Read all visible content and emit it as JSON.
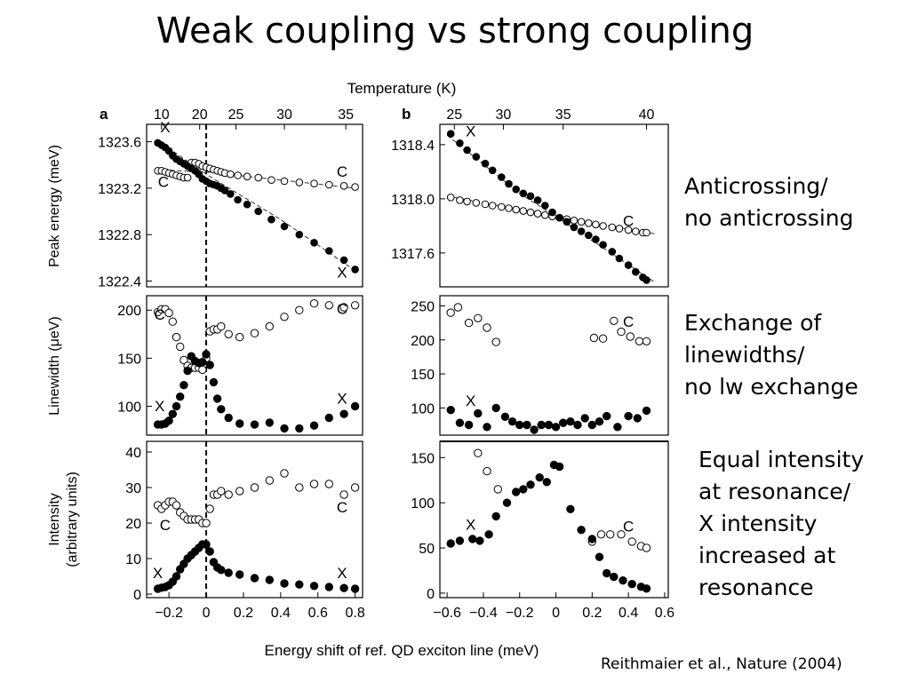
{
  "slide": {
    "title": "Weak coupling vs strong coupling",
    "notes": [
      {
        "lines": [
          "Anticrossing/",
          "no anticrossing"
        ]
      },
      {
        "lines": [
          "Exchange of",
          "linewidths/",
          "no lw exchange"
        ]
      },
      {
        "lines": [
          "Equal intensity",
          "at resonance/",
          "X intensity",
          "increased at",
          "resonance"
        ]
      }
    ],
    "citation": "Reithmaier et al.,  Nature (2004)"
  },
  "figure": {
    "top_axis_label": "Temperature (K)",
    "bottom_axis_label": "Energy shift of ref. QD exciton line (meV)",
    "panel_letters": [
      "a",
      "b"
    ],
    "row_ylabels": [
      "Peak energy (meV)",
      "Linewidth (μeV)",
      "Intensity (arbitrary units)"
    ],
    "intensity_ylabel_lines": [
      "Intensity",
      "(arbitrary units)"
    ],
    "series_labels": {
      "exciton": "X",
      "cavity": "C"
    },
    "temperature_ticks_a": [
      {
        "label": "10",
        "x": -0.24
      },
      {
        "label": "20",
        "x": -0.035
      },
      {
        "label": "25",
        "x": 0.16
      },
      {
        "label": "30",
        "x": 0.42
      },
      {
        "label": "35",
        "x": 0.75
      }
    ],
    "temperature_ticks_b": [
      {
        "label": "25",
        "x": -0.56
      },
      {
        "label": "30",
        "x": -0.29
      },
      {
        "label": "35",
        "x": 0.04
      },
      {
        "label": "40",
        "x": 0.5
      }
    ],
    "xticks_a": {
      "values": [
        -0.2,
        0,
        0.2,
        0.4,
        0.6,
        0.8
      ],
      "labels": [
        "−0.2",
        "0",
        "0.2",
        "0.4",
        "0.6",
        "0.8"
      ]
    },
    "xticks_b": {
      "values": [
        -0.6,
        -0.4,
        -0.2,
        0,
        0.2,
        0.4,
        0.6
      ],
      "labels": [
        "−0.6",
        "−0.4",
        "−0.2",
        "0",
        "0.2",
        "0.4",
        "0.6"
      ]
    }
  },
  "chart_data": [
    {
      "id": "a-energy",
      "type": "scatter",
      "xlim": [
        -0.32,
        0.84
      ],
      "ylim": [
        1322.35,
        1323.75
      ],
      "yticks": [
        1322.4,
        1322.8,
        1323.2,
        1323.6
      ],
      "yticklabels": [
        "1322.4",
        "1322.8",
        "1323.2",
        "1323.6"
      ],
      "resonance_line_x": 0,
      "fits": [
        {
          "name": "X",
          "x": [
            -0.27,
            0.0,
            0.4,
            0.8
          ],
          "y": [
            1323.62,
            1323.32,
            1322.93,
            1322.49
          ]
        },
        {
          "name": "C",
          "x": [
            -0.27,
            0.0,
            0.4,
            0.8
          ],
          "y": [
            1323.36,
            1323.34,
            1323.27,
            1323.2
          ]
        }
      ],
      "series": [
        {
          "name": "X",
          "marker": "filled",
          "x": [
            -0.26,
            -0.24,
            -0.22,
            -0.2,
            -0.18,
            -0.16,
            -0.14,
            -0.12,
            -0.1,
            -0.08,
            -0.06,
            -0.04,
            -0.02,
            0.0,
            0.02,
            0.04,
            0.06,
            0.08,
            0.1,
            0.13,
            0.17,
            0.22,
            0.28,
            0.35,
            0.42,
            0.5,
            0.58,
            0.66,
            0.74,
            0.8
          ],
          "y": [
            1323.59,
            1323.57,
            1323.55,
            1323.52,
            1323.48,
            1323.45,
            1323.43,
            1323.41,
            1323.39,
            1323.37,
            1323.35,
            1323.32,
            1323.28,
            1323.26,
            1323.24,
            1323.23,
            1323.22,
            1323.2,
            1323.18,
            1323.15,
            1323.1,
            1323.06,
            1323.0,
            1322.93,
            1322.87,
            1322.8,
            1322.73,
            1322.66,
            1322.58,
            1322.5
          ]
        },
        {
          "name": "C",
          "marker": "open",
          "x": [
            -0.26,
            -0.24,
            -0.22,
            -0.2,
            -0.18,
            -0.16,
            -0.14,
            -0.12,
            -0.1,
            -0.08,
            -0.06,
            -0.04,
            -0.02,
            0.0,
            0.02,
            0.04,
            0.06,
            0.08,
            0.1,
            0.13,
            0.17,
            0.22,
            0.28,
            0.35,
            0.42,
            0.5,
            0.58,
            0.66,
            0.74,
            0.8
          ],
          "y": [
            1323.35,
            1323.35,
            1323.34,
            1323.33,
            1323.32,
            1323.31,
            1323.3,
            1323.29,
            1323.29,
            1323.42,
            1323.42,
            1323.41,
            1323.39,
            1323.38,
            1323.37,
            1323.36,
            1323.35,
            1323.34,
            1323.33,
            1323.32,
            1323.31,
            1323.3,
            1323.29,
            1323.27,
            1323.26,
            1323.25,
            1323.24,
            1323.23,
            1323.22,
            1323.21
          ]
        }
      ],
      "labels": [
        {
          "text": "X",
          "x": -0.22,
          "y": 1323.68
        },
        {
          "text": "C",
          "x": -0.23,
          "y": 1323.21
        },
        {
          "text": "C",
          "x": 0.73,
          "y": 1323.3
        },
        {
          "text": "X",
          "x": 0.73,
          "y": 1322.43
        }
      ]
    },
    {
      "id": "a-linewidth",
      "type": "scatter",
      "xlim": [
        -0.32,
        0.84
      ],
      "ylim": [
        70,
        215
      ],
      "yticks": [
        100,
        150,
        200
      ],
      "yticklabels": [
        "100",
        "150",
        "200"
      ],
      "resonance_line_x": 0,
      "series": [
        {
          "name": "X",
          "marker": "filled",
          "x": [
            -0.26,
            -0.24,
            -0.22,
            -0.2,
            -0.18,
            -0.16,
            -0.14,
            -0.12,
            -0.1,
            -0.08,
            -0.06,
            -0.04,
            -0.02,
            0.0,
            0.02,
            0.04,
            0.06,
            0.08,
            0.12,
            0.18,
            0.26,
            0.34,
            0.42,
            0.5,
            0.58,
            0.66,
            0.74,
            0.8
          ],
          "y": [
            81,
            81,
            82,
            85,
            92,
            100,
            110,
            122,
            137,
            152,
            147,
            145,
            146,
            154,
            143,
            125,
            108,
            97,
            88,
            82,
            81,
            83,
            77,
            77,
            80,
            88,
            92,
            100
          ]
        },
        {
          "name": "C",
          "marker": "open",
          "x": [
            -0.26,
            -0.24,
            -0.22,
            -0.2,
            -0.18,
            -0.16,
            -0.14,
            -0.12,
            -0.1,
            -0.08,
            -0.06,
            -0.04,
            -0.02,
            0.0,
            0.02,
            0.04,
            0.06,
            0.08,
            0.12,
            0.18,
            0.26,
            0.34,
            0.42,
            0.5,
            0.58,
            0.66,
            0.74,
            0.8
          ],
          "y": [
            198,
            201,
            201,
            197,
            188,
            172,
            162,
            148,
            142,
            140,
            140,
            140,
            138,
            150,
            178,
            180,
            180,
            183,
            175,
            172,
            176,
            183,
            193,
            200,
            207,
            205,
            203,
            205
          ]
        }
      ],
      "labels": [
        {
          "text": "C",
          "x": -0.25,
          "y": 190
        },
        {
          "text": "C",
          "x": 0.73,
          "y": 196
        },
        {
          "text": "X",
          "x": -0.25,
          "y": 95
        },
        {
          "text": "X",
          "x": 0.73,
          "y": 103
        }
      ]
    },
    {
      "id": "a-intensity",
      "type": "scatter",
      "xlim": [
        -0.32,
        0.84
      ],
      "ylim": [
        -1,
        43
      ],
      "yticks": [
        0,
        10,
        20,
        30,
        40
      ],
      "yticklabels": [
        "0",
        "10",
        "20",
        "30",
        "40"
      ],
      "resonance_line_x": 0,
      "series": [
        {
          "name": "X",
          "marker": "filled",
          "x": [
            -0.26,
            -0.24,
            -0.22,
            -0.2,
            -0.18,
            -0.16,
            -0.14,
            -0.12,
            -0.1,
            -0.08,
            -0.06,
            -0.04,
            -0.02,
            0.0,
            0.02,
            0.04,
            0.06,
            0.08,
            0.12,
            0.18,
            0.26,
            0.34,
            0.42,
            0.5,
            0.58,
            0.66,
            0.74,
            0.8
          ],
          "y": [
            1.5,
            1.8,
            2,
            2.5,
            3.5,
            5,
            7,
            8.5,
            10,
            11,
            12,
            13,
            14,
            14,
            12,
            9,
            7.5,
            6.8,
            6,
            5.5,
            4.5,
            4,
            3,
            2.7,
            2.3,
            2,
            1.7,
            1.5
          ]
        },
        {
          "name": "C",
          "marker": "open",
          "x": [
            -0.26,
            -0.24,
            -0.22,
            -0.2,
            -0.18,
            -0.16,
            -0.14,
            -0.12,
            -0.1,
            -0.08,
            -0.06,
            -0.04,
            -0.02,
            0.0,
            0.02,
            0.04,
            0.06,
            0.08,
            0.12,
            0.18,
            0.26,
            0.34,
            0.42,
            0.5,
            0.58,
            0.66,
            0.74,
            0.8
          ],
          "y": [
            25,
            24,
            25,
            26,
            26,
            25,
            23,
            22,
            21,
            21,
            21,
            21,
            20,
            20,
            24,
            28,
            28,
            29,
            28,
            29,
            30,
            32,
            34,
            30,
            31,
            31,
            28,
            30
          ]
        }
      ],
      "labels": [
        {
          "text": "C",
          "x": -0.22,
          "y": 18
        },
        {
          "text": "C",
          "x": 0.73,
          "y": 23
        },
        {
          "text": "X",
          "x": -0.26,
          "y": 4.5
        },
        {
          "text": "X",
          "x": 0.73,
          "y": 4.5
        }
      ]
    },
    {
      "id": "b-energy",
      "type": "scatter",
      "xlim": [
        -0.64,
        0.62
      ],
      "ylim": [
        1317.35,
        1318.55
      ],
      "yticks": [
        1317.6,
        1318.0,
        1318.4
      ],
      "yticklabels": [
        "1317.6",
        "1318.0",
        "1318.4"
      ],
      "fits": [
        {
          "name": "X",
          "x": [
            -0.6,
            -0.2,
            0.0,
            0.55
          ],
          "y": [
            1318.47,
            1318.04,
            1317.87,
            1317.38
          ]
        },
        {
          "name": "C",
          "x": [
            -0.6,
            0.0,
            0.55
          ],
          "y": [
            1318.02,
            1317.87,
            1317.74
          ]
        }
      ],
      "series": [
        {
          "name": "X",
          "marker": "filled",
          "x": [
            -0.58,
            -0.53,
            -0.49,
            -0.44,
            -0.39,
            -0.35,
            -0.3,
            -0.26,
            -0.22,
            -0.18,
            -0.14,
            -0.1,
            -0.06,
            -0.02,
            0.02,
            0.06,
            0.1,
            0.14,
            0.18,
            0.22,
            0.26,
            0.31,
            0.35,
            0.4,
            0.44,
            0.48,
            0.5
          ],
          "y": [
            1318.48,
            1318.41,
            1318.36,
            1318.31,
            1318.26,
            1318.21,
            1318.16,
            1318.11,
            1318.07,
            1318.04,
            1318.02,
            1317.99,
            1317.95,
            1317.9,
            1317.86,
            1317.83,
            1317.79,
            1317.76,
            1317.73,
            1317.7,
            1317.66,
            1317.61,
            1317.56,
            1317.51,
            1317.46,
            1317.42,
            1317.4
          ]
        },
        {
          "name": "C",
          "marker": "open",
          "x": [
            -0.58,
            -0.53,
            -0.49,
            -0.44,
            -0.39,
            -0.35,
            -0.3,
            -0.26,
            -0.22,
            -0.18,
            -0.14,
            -0.1,
            -0.06,
            -0.02,
            0.02,
            0.06,
            0.1,
            0.14,
            0.18,
            0.22,
            0.26,
            0.31,
            0.35,
            0.4,
            0.44,
            0.48,
            0.5
          ],
          "y": [
            1318.01,
            1317.99,
            1317.98,
            1317.97,
            1317.96,
            1317.95,
            1317.94,
            1317.93,
            1317.92,
            1317.91,
            1317.9,
            1317.89,
            1317.88,
            1317.87,
            1317.86,
            1317.85,
            1317.84,
            1317.83,
            1317.82,
            1317.81,
            1317.8,
            1317.79,
            1317.78,
            1317.77,
            1317.76,
            1317.75,
            1317.75
          ]
        }
      ],
      "labels": [
        {
          "text": "X",
          "x": -0.47,
          "y": 1318.46
        },
        {
          "text": "C",
          "x": 0.4,
          "y": 1317.8
        }
      ]
    },
    {
      "id": "b-linewidth",
      "type": "scatter",
      "xlim": [
        -0.64,
        0.62
      ],
      "ylim": [
        60,
        265
      ],
      "yticks": [
        100,
        150,
        200,
        250
      ],
      "yticklabels": [
        "100",
        "150",
        "200",
        "250"
      ],
      "series": [
        {
          "name": "X",
          "marker": "filled",
          "x": [
            -0.58,
            -0.53,
            -0.48,
            -0.43,
            -0.38,
            -0.33,
            -0.28,
            -0.24,
            -0.2,
            -0.16,
            -0.12,
            -0.08,
            -0.04,
            0.0,
            0.04,
            0.08,
            0.12,
            0.16,
            0.2,
            0.24,
            0.28,
            0.34,
            0.4,
            0.45,
            0.5
          ],
          "y": [
            97,
            78,
            75,
            92,
            72,
            100,
            87,
            80,
            75,
            75,
            68,
            75,
            75,
            72,
            78,
            80,
            75,
            85,
            75,
            80,
            88,
            72,
            88,
            85,
            96
          ]
        },
        {
          "name": "C",
          "marker": "open",
          "x": [
            -0.58,
            -0.54,
            -0.48,
            -0.43,
            -0.38,
            -0.33,
            0.21,
            0.26,
            0.32,
            0.36,
            0.41,
            0.46,
            0.5
          ],
          "y": [
            240,
            248,
            225,
            232,
            218,
            197,
            203,
            202,
            228,
            212,
            205,
            198,
            198
          ]
        }
      ],
      "labels": [
        {
          "text": "X",
          "x": -0.47,
          "y": 103
        },
        {
          "text": "C",
          "x": 0.4,
          "y": 219
        }
      ]
    },
    {
      "id": "b-intensity",
      "type": "scatter",
      "xlim": [
        -0.64,
        0.62
      ],
      "ylim": [
        -5,
        168
      ],
      "yticks": [
        0,
        50,
        100,
        150
      ],
      "yticklabels": [
        "0",
        "50",
        "100",
        "150"
      ],
      "series": [
        {
          "name": "X",
          "marker": "filled",
          "x": [
            -0.58,
            -0.53,
            -0.46,
            -0.42,
            -0.37,
            -0.33,
            -0.27,
            -0.22,
            -0.18,
            -0.14,
            -0.09,
            -0.05,
            -0.01,
            0.02,
            0.08,
            0.14,
            0.2,
            0.24,
            0.28,
            0.32,
            0.37,
            0.42,
            0.47,
            0.5
          ],
          "y": [
            55,
            58,
            60,
            58,
            65,
            85,
            100,
            112,
            115,
            120,
            128,
            123,
            142,
            140,
            93,
            70,
            60,
            40,
            22,
            18,
            14,
            10,
            7,
            5
          ]
        },
        {
          "name": "C",
          "marker": "open",
          "x": [
            -0.43,
            -0.38,
            -0.32,
            0.2,
            0.25,
            0.3,
            0.36,
            0.42,
            0.47,
            0.5
          ],
          "y": [
            155,
            135,
            115,
            57,
            65,
            65,
            65,
            57,
            52,
            50
          ]
        }
      ],
      "labels": [
        {
          "text": "X",
          "x": -0.47,
          "y": 70
        },
        {
          "text": "C",
          "x": 0.4,
          "y": 68
        }
      ]
    }
  ]
}
